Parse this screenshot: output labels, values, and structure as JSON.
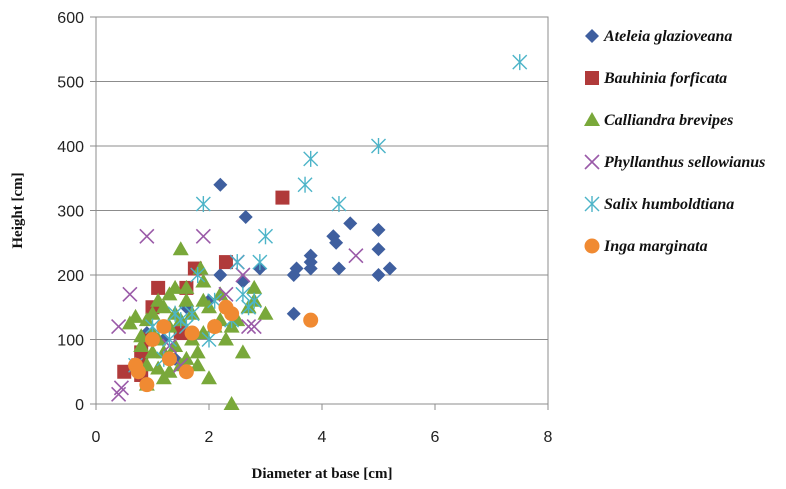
{
  "chart_data": {
    "type": "scatter",
    "xlabel": "Diameter at base [cm]",
    "ylabel": "Height [cm]",
    "xlim": [
      0,
      8
    ],
    "ylim": [
      0,
      600
    ],
    "xticks": [
      "0",
      "2",
      "4",
      "6",
      "8"
    ],
    "yticks": [
      "0",
      "100",
      "200",
      "300",
      "400",
      "500",
      "600"
    ],
    "grid": "horizontal",
    "legend": "right",
    "series": [
      {
        "name": "Ateleia glazioveana",
        "marker": "diamond",
        "color": "#3f5f9f",
        "points": [
          [
            2.2,
            340
          ],
          [
            2.65,
            290
          ],
          [
            2.2,
            200
          ],
          [
            2.6,
            190
          ],
          [
            2.9,
            210
          ],
          [
            3.5,
            200
          ],
          [
            3.55,
            210
          ],
          [
            3.8,
            220
          ],
          [
            3.8,
            230
          ],
          [
            3.8,
            210
          ],
          [
            4.2,
            260
          ],
          [
            4.25,
            250
          ],
          [
            4.3,
            210
          ],
          [
            4.5,
            280
          ],
          [
            5.0,
            270
          ],
          [
            5.0,
            240
          ],
          [
            5.0,
            200
          ],
          [
            5.2,
            210
          ],
          [
            3.5,
            140
          ],
          [
            2.0,
            160
          ],
          [
            1.2,
            100
          ],
          [
            1.6,
            150
          ],
          [
            1.4,
            70
          ],
          [
            0.9,
            110
          ]
        ]
      },
      {
        "name": "Bauhinia forficata",
        "marker": "square",
        "color": "#b03a3a",
        "points": [
          [
            3.3,
            320
          ],
          [
            2.3,
            220
          ],
          [
            1.75,
            210
          ],
          [
            1.1,
            180
          ],
          [
            1.0,
            150
          ],
          [
            0.9,
            100
          ],
          [
            0.8,
            80
          ],
          [
            0.75,
            60
          ],
          [
            0.5,
            50
          ],
          [
            1.5,
            110
          ],
          [
            1.6,
            180
          ],
          [
            0.8,
            45
          ]
        ]
      },
      {
        "name": "Calliandra brevipes",
        "marker": "triangle",
        "color": "#79a83a",
        "points": [
          [
            1.5,
            240
          ],
          [
            1.85,
            210
          ],
          [
            1.9,
            190
          ],
          [
            1.3,
            170
          ],
          [
            1.4,
            180
          ],
          [
            1.6,
            180
          ],
          [
            1.1,
            160
          ],
          [
            1.2,
            150
          ],
          [
            1.0,
            140
          ],
          [
            0.9,
            130
          ],
          [
            0.7,
            135
          ],
          [
            0.6,
            125
          ],
          [
            1.0,
            110
          ],
          [
            1.1,
            100
          ],
          [
            0.8,
            105
          ],
          [
            1.3,
            120
          ],
          [
            1.5,
            130
          ],
          [
            1.7,
            140
          ],
          [
            1.9,
            160
          ],
          [
            2.0,
            150
          ],
          [
            2.2,
            130
          ],
          [
            2.4,
            120
          ],
          [
            2.5,
            130
          ],
          [
            2.8,
            180
          ],
          [
            2.8,
            160
          ],
          [
            2.7,
            150
          ],
          [
            3.0,
            140
          ],
          [
            2.3,
            100
          ],
          [
            1.2,
            80
          ],
          [
            1.4,
            90
          ],
          [
            1.6,
            70
          ],
          [
            1.8,
            80
          ],
          [
            0.9,
            60
          ],
          [
            1.1,
            55
          ],
          [
            1.3,
            50
          ],
          [
            1.5,
            60
          ],
          [
            0.9,
            30
          ],
          [
            1.2,
            40
          ],
          [
            2.0,
            40
          ],
          [
            1.0,
            80
          ],
          [
            0.8,
            90
          ],
          [
            1.7,
            100
          ],
          [
            1.9,
            110
          ],
          [
            2.1,
            120
          ],
          [
            2.6,
            80
          ],
          [
            2.4,
            0
          ],
          [
            1.8,
            60
          ],
          [
            1.4,
            140
          ],
          [
            1.6,
            160
          ],
          [
            2.2,
            170
          ]
        ]
      },
      {
        "name": "Phyllanthus sellowianus",
        "marker": "x",
        "color": "#9a5aa8",
        "points": [
          [
            0.9,
            260
          ],
          [
            1.9,
            260
          ],
          [
            0.6,
            170
          ],
          [
            0.4,
            120
          ],
          [
            0.45,
            25
          ],
          [
            0.4,
            15
          ],
          [
            2.7,
            120
          ],
          [
            2.8,
            120
          ],
          [
            4.6,
            230
          ],
          [
            2.5,
            220
          ],
          [
            1.5,
            60
          ],
          [
            1.3,
            90
          ],
          [
            2.3,
            170
          ],
          [
            2.6,
            200
          ]
        ]
      },
      {
        "name": "Salix humboldtiana",
        "marker": "asterisk",
        "color": "#4cb4c8",
        "points": [
          [
            7.5,
            530
          ],
          [
            5.0,
            400
          ],
          [
            3.8,
            380
          ],
          [
            3.7,
            340
          ],
          [
            4.3,
            310
          ],
          [
            1.9,
            310
          ],
          [
            3.0,
            260
          ],
          [
            2.5,
            220
          ],
          [
            2.9,
            220
          ],
          [
            1.8,
            200
          ],
          [
            2.6,
            170
          ],
          [
            2.8,
            160
          ],
          [
            2.7,
            150
          ],
          [
            1.7,
            140
          ],
          [
            1.5,
            130
          ],
          [
            1.4,
            140
          ],
          [
            1.3,
            100
          ],
          [
            1.0,
            120
          ],
          [
            2.0,
            100
          ],
          [
            1.6,
            120
          ],
          [
            1.2,
            70
          ],
          [
            0.7,
            60
          ],
          [
            2.4,
            130
          ],
          [
            2.1,
            160
          ]
        ]
      },
      {
        "name": "Inga marginata",
        "marker": "circle",
        "color": "#f08a32",
        "points": [
          [
            2.3,
            150
          ],
          [
            2.4,
            140
          ],
          [
            1.2,
            120
          ],
          [
            1.0,
            100
          ],
          [
            2.1,
            120
          ],
          [
            1.7,
            110
          ],
          [
            1.3,
            70
          ],
          [
            0.7,
            60
          ],
          [
            0.75,
            50
          ],
          [
            1.6,
            50
          ],
          [
            0.9,
            30
          ],
          [
            3.8,
            130
          ]
        ]
      }
    ]
  }
}
